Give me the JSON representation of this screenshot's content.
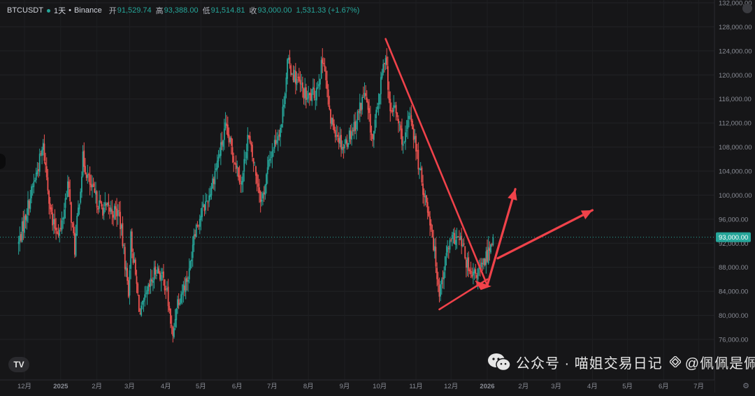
{
  "header": {
    "symbol": "BTCUSDT",
    "interval": "1天",
    "exchange": "Binance",
    "open_label": "开",
    "open": "91,529.74",
    "high_label": "高",
    "high": "93,388.00",
    "low_label": "低",
    "low": "91,514.81",
    "close_label": "收",
    "close": "93,000.00",
    "change": "1,531.33 (+1.67%)"
  },
  "price_axis": {
    "labels": [
      "132,000.00",
      "128,000.00",
      "124,000.00",
      "120,000.00",
      "116,000.00",
      "112,000.00",
      "108,000.00",
      "104,000.00",
      "100,000.00",
      "96,000.00",
      "92,000.00",
      "88,000.00",
      "84,000.00",
      "80,000.00",
      "76,000.00"
    ],
    "current_price": "93,000.00"
  },
  "time_axis": {
    "labels": [
      "12月",
      "2025",
      "2月",
      "3月",
      "4月",
      "5月",
      "6月",
      "7月",
      "8月",
      "9月",
      "10月",
      "11月",
      "12月",
      "2026",
      "2月",
      "3月",
      "4月",
      "5月",
      "6月",
      "7月"
    ]
  },
  "logo": {
    "text": "TV"
  },
  "watermark": {
    "text": "公众号 · 喵姐交易日记",
    "badge_text": "@佩佩是佩佩"
  },
  "colors": {
    "up": "#26a69a",
    "down": "#ef5350",
    "background": "#161618",
    "annotation": "#f0424a"
  },
  "icons": [
    "settings-icon",
    "gear-icon",
    "wechat-icon",
    "binance-diamond-icon"
  ],
  "chart_data": {
    "type": "candlestick",
    "title": "",
    "xlabel": "",
    "ylabel": "",
    "ylim": [
      74000,
      133000
    ],
    "y_unit": "USDT",
    "x_start": "2024-11-26",
    "x_end": "2026-01-06",
    "last_close": 93000,
    "anchors": [
      [
        "2024-11-26",
        92000
      ],
      [
        "2024-12-05",
        99000
      ],
      [
        "2024-12-17",
        108000
      ],
      [
        "2024-12-25",
        95000
      ],
      [
        "2025-01-01",
        94000
      ],
      [
        "2025-01-07",
        102000
      ],
      [
        "2025-01-13",
        91000
      ],
      [
        "2025-01-20",
        106000
      ],
      [
        "2025-01-27",
        101000
      ],
      [
        "2025-02-04",
        98000
      ],
      [
        "2025-02-20",
        97000
      ],
      [
        "2025-02-28",
        84000
      ],
      [
        "2025-03-02",
        93000
      ],
      [
        "2025-03-10",
        80000
      ],
      [
        "2025-03-24",
        88000
      ],
      [
        "2025-04-01",
        85000
      ],
      [
        "2025-04-07",
        76000
      ],
      [
        "2025-04-10",
        82000
      ],
      [
        "2025-04-21",
        87000
      ],
      [
        "2025-04-25",
        94000
      ],
      [
        "2025-05-08",
        100000
      ],
      [
        "2025-05-22",
        111000
      ],
      [
        "2025-06-05",
        102000
      ],
      [
        "2025-06-10",
        110000
      ],
      [
        "2025-06-22",
        99000
      ],
      [
        "2025-06-30",
        107000
      ],
      [
        "2025-07-09",
        112000
      ],
      [
        "2025-07-14",
        122000
      ],
      [
        "2025-07-31",
        116000
      ],
      [
        "2025-08-07",
        117000
      ],
      [
        "2025-08-14",
        123000
      ],
      [
        "2025-08-19",
        113000
      ],
      [
        "2025-08-31",
        108000
      ],
      [
        "2025-09-10",
        112000
      ],
      [
        "2025-09-18",
        117000
      ],
      [
        "2025-09-25",
        109000
      ],
      [
        "2025-10-06",
        124000
      ],
      [
        "2025-10-10",
        113000
      ],
      [
        "2025-10-13",
        115000
      ],
      [
        "2025-10-22",
        108000
      ],
      [
        "2025-10-27",
        114000
      ],
      [
        "2025-11-04",
        104000
      ],
      [
        "2025-11-14",
        95000
      ],
      [
        "2025-11-21",
        84000
      ],
      [
        "2025-11-28",
        91000
      ],
      [
        "2025-12-04",
        93000
      ],
      [
        "2025-12-10",
        92000
      ],
      [
        "2025-12-18",
        86000
      ],
      [
        "2025-12-28",
        88000
      ],
      [
        "2026-01-06",
        93000
      ]
    ],
    "annotations": [
      {
        "type": "line",
        "from": [
          "2025-10-06",
          126000
        ],
        "to": [
          "2026-01-01",
          85000
        ]
      },
      {
        "type": "line",
        "from": [
          "2025-11-21",
          81000
        ],
        "to": [
          "2026-01-01",
          86000
        ]
      },
      {
        "type": "arrow",
        "from": [
          "2026-01-01",
          85000
        ],
        "to": [
          "2026-01-25",
          101000
        ]
      },
      {
        "type": "arrow",
        "from": [
          "2026-01-10",
          89500
        ],
        "to": [
          "2026-04-01",
          97500
        ]
      }
    ]
  }
}
